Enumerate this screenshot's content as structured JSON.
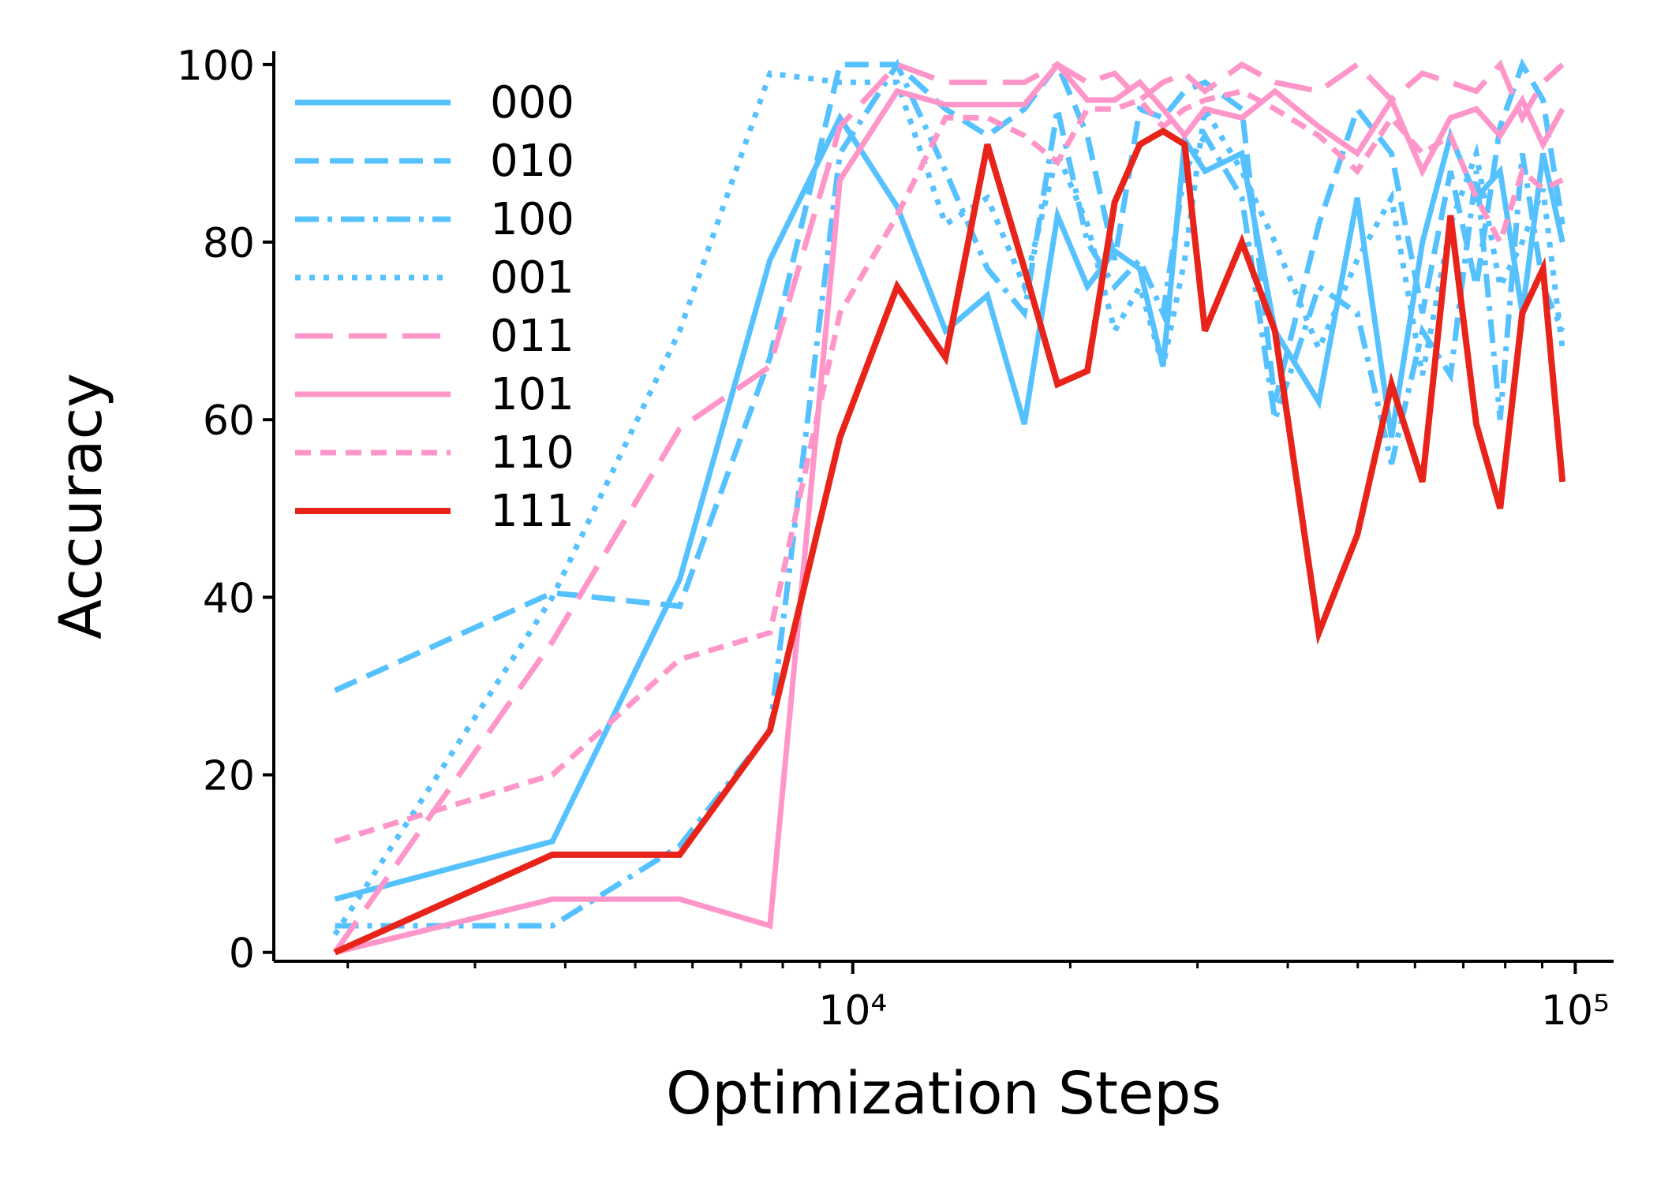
{
  "chart_data": {
    "type": "line",
    "xlabel": "Optimization Steps",
    "ylabel": "Accuracy",
    "xscale": "log",
    "xlim": [
      1580,
      113000
    ],
    "ylim": [
      -1,
      101.5
    ],
    "xticks": [
      {
        "value": 10000,
        "label": "10⁴"
      },
      {
        "value": 100000,
        "label": "10⁵"
      }
    ],
    "xminorticks": [
      2000,
      3000,
      4000,
      5000,
      6000,
      7000,
      8000,
      9000,
      20000,
      30000,
      40000,
      50000,
      60000,
      70000,
      80000,
      90000
    ],
    "yticks": [
      0,
      20,
      40,
      60,
      80,
      100
    ],
    "legend": "upper left",
    "x": [
      1920,
      3840,
      5760,
      7680,
      9600,
      11520,
      13440,
      15360,
      17280,
      19200,
      21120,
      23040,
      24960,
      26880,
      28800,
      30720,
      34560,
      38400,
      44160,
      49920,
      55680,
      61440,
      67200,
      72960,
      78720,
      84480,
      90240,
      96000
    ],
    "series": [
      {
        "name": "000",
        "color": "#56c1ff",
        "dash": "solid",
        "values": [
          6,
          12.5,
          42,
          78,
          94,
          84,
          70,
          74,
          59.5,
          83,
          75,
          79,
          77,
          66,
          91.5,
          88,
          90,
          70,
          62,
          85,
          58,
          80,
          92,
          85,
          88,
          72,
          90,
          80
        ]
      },
      {
        "name": "010",
        "color": "#56c1ff",
        "dash": "dashed",
        "values": [
          29.5,
          40.5,
          39,
          67,
          100,
          100,
          95,
          92,
          95,
          100,
          92,
          78,
          95,
          94,
          97,
          98,
          95,
          62,
          82,
          95,
          90,
          72,
          88,
          75,
          93,
          100,
          96,
          82
        ]
      },
      {
        "name": "100",
        "color": "#56c1ff",
        "dash": "dashdot",
        "values": [
          3,
          3,
          12,
          25,
          90,
          100,
          88,
          77,
          72,
          95,
          80,
          75,
          78,
          72,
          88,
          92,
          85,
          60,
          75,
          72,
          55,
          70,
          65,
          88,
          60,
          90,
          75,
          70
        ]
      },
      {
        "name": "001",
        "color": "#56c1ff",
        "dash": "dotted",
        "values": [
          2,
          40,
          70,
          99,
          98,
          98,
          82,
          85,
          75,
          90,
          82,
          70,
          75,
          66,
          78,
          95,
          88,
          80,
          68,
          78,
          85,
          65,
          82,
          90,
          75,
          80,
          86,
          68
        ]
      },
      {
        "name": "011",
        "color": "#ff96ca",
        "dash": "longdash",
        "values": [
          0,
          35,
          59,
          66,
          93,
          100,
          98,
          98,
          98,
          100,
          98,
          99,
          96,
          98,
          99,
          97,
          100,
          98,
          97,
          100,
          96,
          99,
          98,
          97,
          100,
          94,
          98,
          100
        ]
      },
      {
        "name": "101",
        "color": "#ff96ca",
        "dash": "solid",
        "values": [
          0,
          6,
          6,
          3,
          87,
          97,
          95.5,
          95.5,
          95.5,
          100,
          96,
          96,
          98,
          95,
          92,
          95,
          94,
          97,
          93,
          90,
          96,
          88,
          94,
          95,
          92,
          96,
          91,
          95
        ]
      },
      {
        "name": "110",
        "color": "#ff96ca",
        "dash": "shortdash",
        "values": [
          12.5,
          20,
          33,
          36,
          72,
          83,
          94,
          94,
          92,
          89,
          95,
          95,
          96,
          93,
          95,
          96,
          97,
          95,
          92,
          88,
          94,
          90,
          92,
          85,
          80,
          88,
          86,
          87
        ]
      },
      {
        "name": "111",
        "color": "#e8241a",
        "dash": "solid",
        "values": [
          0,
          11,
          11,
          25,
          58,
          75,
          67,
          91,
          77,
          64,
          65.5,
          84.5,
          91,
          92.5,
          91,
          70,
          80,
          70,
          36,
          47,
          64,
          53,
          83,
          59.5,
          50,
          72,
          77,
          53
        ]
      }
    ]
  }
}
